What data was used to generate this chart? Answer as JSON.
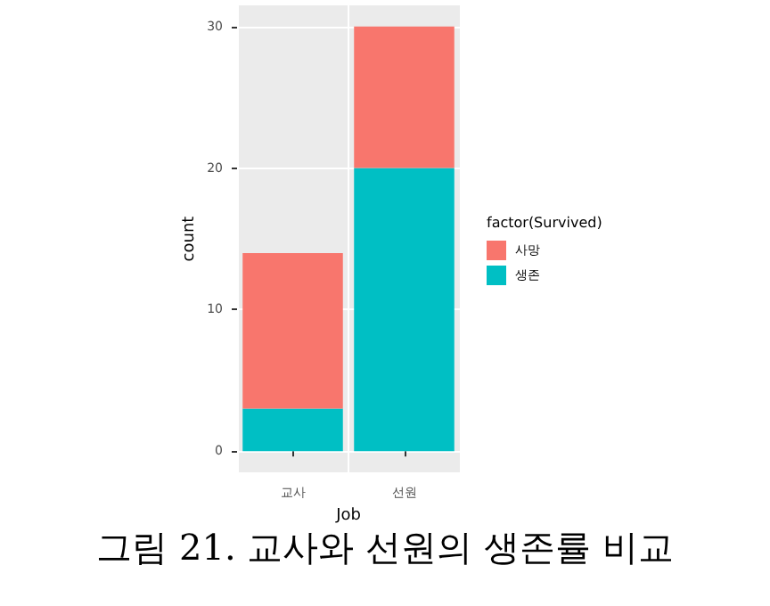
{
  "chart_data": {
    "type": "bar",
    "stacked": true,
    "categories": [
      "교사",
      "선원"
    ],
    "series": [
      {
        "name": "생존",
        "color": "#00bfc4",
        "values": [
          3,
          20
        ]
      },
      {
        "name": "사망",
        "color": "#f8766d",
        "values": [
          11,
          10
        ]
      }
    ],
    "xlabel": "Job",
    "ylabel": "count",
    "legend_title": "factor(Survived)",
    "legend": "right",
    "ylim": [
      -1.5,
      31.5
    ],
    "yticks": [
      0,
      10,
      20,
      30
    ],
    "grid": true,
    "annotations": [
      "그림 21. 교사와 선원의 생존률 비교"
    ]
  }
}
